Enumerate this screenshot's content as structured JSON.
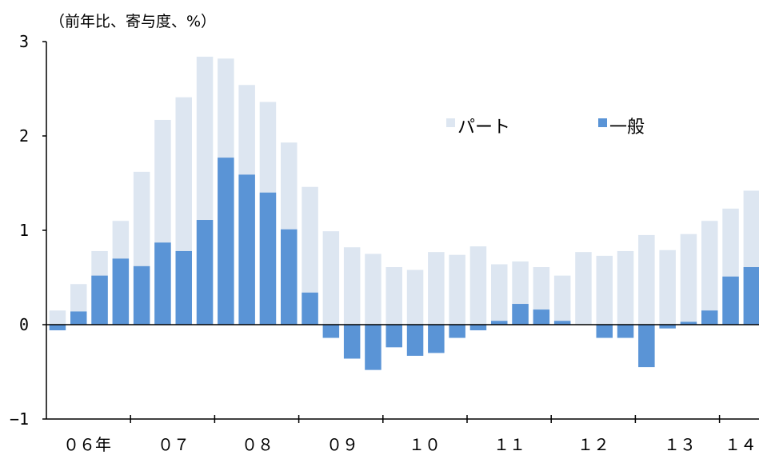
{
  "unit_label": "（前年比、寄与度、%）",
  "chart_data": {
    "type": "bar",
    "stacked": false,
    "ylim": [
      -1,
      3
    ],
    "y_ticks": [
      -1,
      0,
      1,
      2,
      3
    ],
    "y_tick_labels": [
      "−1",
      "0",
      "1",
      "2",
      "3"
    ],
    "x_tick_labels": [
      "０６年",
      "０７",
      "０８",
      "０９",
      "１０",
      "１１",
      "１２",
      "１３",
      "１４"
    ],
    "legend": {
      "position": "top-right-inside"
    },
    "series": [
      {
        "name": "パート",
        "color": "#dde6f1",
        "values": [
          0.15,
          0.43,
          0.78,
          1.1,
          1.62,
          2.17,
          2.41,
          2.84,
          2.82,
          2.54,
          2.36,
          1.93,
          1.46,
          0.99,
          0.82,
          0.75,
          0.61,
          0.58,
          0.77,
          0.74,
          0.83,
          0.64,
          0.67,
          0.61,
          0.52,
          0.77,
          0.73,
          0.78,
          0.95,
          0.79,
          0.96,
          1.1,
          1.23,
          1.42
        ]
      },
      {
        "name": "一般",
        "color": "#5a94d6",
        "values": [
          -0.06,
          0.14,
          0.52,
          0.7,
          0.62,
          0.87,
          0.78,
          1.11,
          1.77,
          1.59,
          1.4,
          1.01,
          0.34,
          -0.14,
          -0.36,
          -0.48,
          -0.24,
          -0.33,
          -0.3,
          -0.14,
          -0.06,
          0.04,
          0.22,
          0.16,
          0.04,
          0.0,
          -0.14,
          -0.14,
          -0.45,
          -0.04,
          0.03,
          0.15,
          0.51,
          0.61
        ]
      }
    ]
  }
}
